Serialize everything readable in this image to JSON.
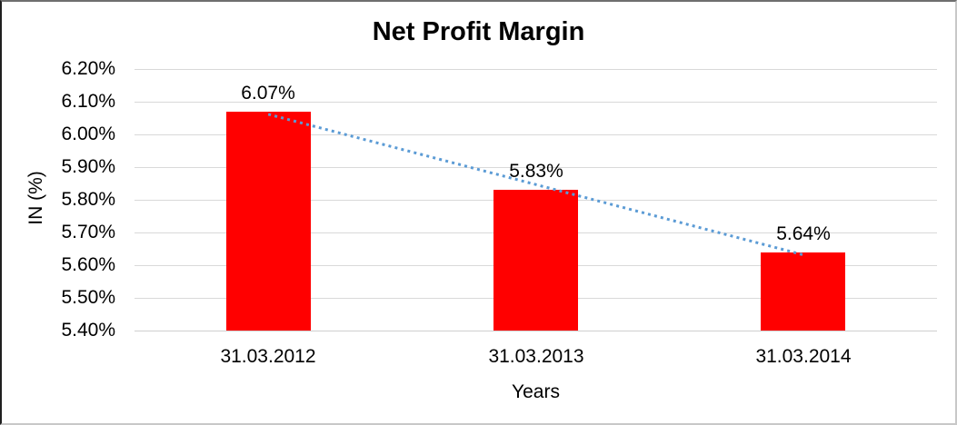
{
  "chart_data": {
    "type": "bar",
    "title": "Net Profit Margin",
    "categories": [
      "31.03.2012",
      "31.03.2013",
      "31.03.2014"
    ],
    "values": [
      6.07,
      5.83,
      5.64
    ],
    "data_labels": [
      "6.07%",
      "5.83%",
      "5.64%"
    ],
    "xlabel": "Years",
    "ylabel": "IN (%)",
    "ylim": [
      5.4,
      6.2
    ],
    "ytick_interval": 0.1,
    "ytick_labels": [
      "6.20%",
      "6.10%",
      "6.00%",
      "5.90%",
      "5.80%",
      "5.70%",
      "5.60%",
      "5.50%",
      "5.40%"
    ],
    "grid": true,
    "legend": false,
    "trendline": {
      "type": "linear",
      "style": "dotted"
    },
    "colors": {
      "bar": "#ff0000",
      "trendline": "#5b9bd5",
      "gridline": "#d9d9d9",
      "text": "#000000",
      "background": "#ffffff"
    }
  }
}
